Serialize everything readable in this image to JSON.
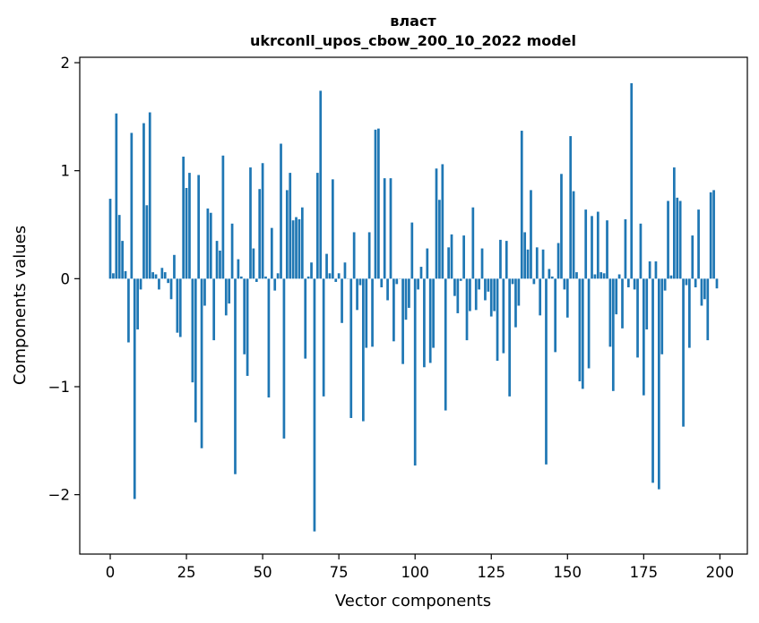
{
  "chart_data": {
    "type": "bar",
    "title_line1": "власт",
    "title_line2": "ukrconll_upos_cbow_200_10_2022 model",
    "xlabel": "Vector components",
    "ylabel": "Components values",
    "xlim": [
      -10,
      209
    ],
    "ylim": [
      -2.55,
      2.05
    ],
    "xticks": [
      0,
      25,
      50,
      75,
      100,
      125,
      150,
      175,
      200
    ],
    "yticks": [
      -2,
      -1,
      0,
      1,
      2
    ],
    "ytick_labels": [
      "−2",
      "−1",
      "0",
      "1",
      "2"
    ],
    "bar_color": "#1f77b4",
    "x": [
      0,
      1,
      2,
      3,
      4,
      5,
      6,
      7,
      8,
      9,
      10,
      11,
      12,
      13,
      14,
      15,
      16,
      17,
      18,
      19,
      20,
      21,
      22,
      23,
      24,
      25,
      26,
      27,
      28,
      29,
      30,
      31,
      32,
      33,
      34,
      35,
      36,
      37,
      38,
      39,
      40,
      41,
      42,
      43,
      44,
      45,
      46,
      47,
      48,
      49,
      50,
      51,
      52,
      53,
      54,
      55,
      56,
      57,
      58,
      59,
      60,
      61,
      62,
      63,
      64,
      65,
      66,
      67,
      68,
      69,
      70,
      71,
      72,
      73,
      74,
      75,
      76,
      77,
      78,
      79,
      80,
      81,
      82,
      83,
      84,
      85,
      86,
      87,
      88,
      89,
      90,
      91,
      92,
      93,
      94,
      95,
      96,
      97,
      98,
      99,
      100,
      101,
      102,
      103,
      104,
      105,
      106,
      107,
      108,
      109,
      110,
      111,
      112,
      113,
      114,
      115,
      116,
      117,
      118,
      119,
      120,
      121,
      122,
      123,
      124,
      125,
      126,
      127,
      128,
      129,
      130,
      131,
      132,
      133,
      134,
      135,
      136,
      137,
      138,
      139,
      140,
      141,
      142,
      143,
      144,
      145,
      146,
      147,
      148,
      149,
      150,
      151,
      152,
      153,
      154,
      155,
      156,
      157,
      158,
      159,
      160,
      161,
      162,
      163,
      164,
      165,
      166,
      167,
      168,
      169,
      170,
      171,
      172,
      173,
      174,
      175,
      176,
      177,
      178,
      179,
      180,
      181,
      182,
      183,
      184,
      185,
      186,
      187,
      188,
      189,
      190,
      191,
      192,
      193,
      194,
      195,
      196,
      197,
      198,
      199
    ],
    "values": [
      0.74,
      0.05,
      1.53,
      0.59,
      0.35,
      0.07,
      -0.59,
      1.35,
      -2.04,
      -0.47,
      -0.1,
      1.44,
      0.68,
      1.54,
      0.06,
      0.04,
      -0.1,
      0.1,
      0.06,
      -0.04,
      -0.19,
      0.22,
      -0.5,
      -0.54,
      1.13,
      0.84,
      0.98,
      -0.96,
      -1.33,
      0.96,
      -1.57,
      -0.25,
      0.65,
      0.61,
      -0.57,
      0.35,
      0.26,
      1.14,
      -0.34,
      -0.23,
      0.51,
      -1.81,
      0.18,
      0.02,
      -0.7,
      -0.9,
      1.03,
      0.28,
      -0.03,
      0.83,
      1.07,
      0.02,
      -1.1,
      0.47,
      -0.11,
      0.05,
      1.25,
      -1.48,
      0.82,
      0.98,
      0.54,
      0.57,
      0.55,
      0.66,
      -0.74,
      0.02,
      0.15,
      -2.34,
      0.98,
      1.74,
      -1.09,
      0.23,
      0.05,
      0.92,
      -0.03,
      0.05,
      -0.41,
      0.15,
      0.0,
      -1.29,
      0.43,
      -0.29,
      -0.06,
      -1.32,
      -0.64,
      0.43,
      -0.63,
      1.38,
      1.39,
      -0.08,
      0.93,
      -0.2,
      0.93,
      -0.58,
      -0.05,
      0.0,
      -0.79,
      -0.38,
      -0.27,
      0.52,
      -1.73,
      -0.1,
      0.11,
      -0.82,
      0.28,
      -0.78,
      -0.64,
      1.02,
      0.73,
      1.06,
      -1.22,
      0.29,
      0.41,
      -0.16,
      -0.32,
      -0.02,
      0.4,
      -0.57,
      -0.3,
      0.66,
      -0.29,
      -0.1,
      0.28,
      -0.2,
      -0.12,
      -0.35,
      -0.3,
      -0.76,
      0.36,
      -0.69,
      0.35,
      -1.09,
      -0.05,
      -0.45,
      -0.25,
      1.37,
      0.43,
      0.27,
      0.82,
      -0.05,
      0.29,
      -0.34,
      0.27,
      -1.72,
      0.09,
      0.02,
      -0.68,
      0.33,
      0.97,
      -0.1,
      -0.36,
      1.32,
      0.81,
      0.06,
      -0.95,
      -1.02,
      0.64,
      -0.83,
      0.58,
      0.04,
      0.62,
      0.06,
      0.05,
      0.54,
      -0.63,
      -1.04,
      -0.33,
      0.04,
      -0.46,
      0.55,
      -0.08,
      1.81,
      -0.1,
      -0.73,
      0.51,
      -1.08,
      -0.47,
      0.16,
      -1.89,
      0.16,
      -1.95,
      -0.7,
      -0.11,
      0.72,
      0.03,
      1.03,
      0.75,
      0.72,
      -1.37,
      -0.06,
      -0.64,
      0.4,
      -0.08,
      0.64,
      -0.25,
      -0.19,
      -0.57,
      0.8,
      0.82,
      -0.09
    ]
  }
}
